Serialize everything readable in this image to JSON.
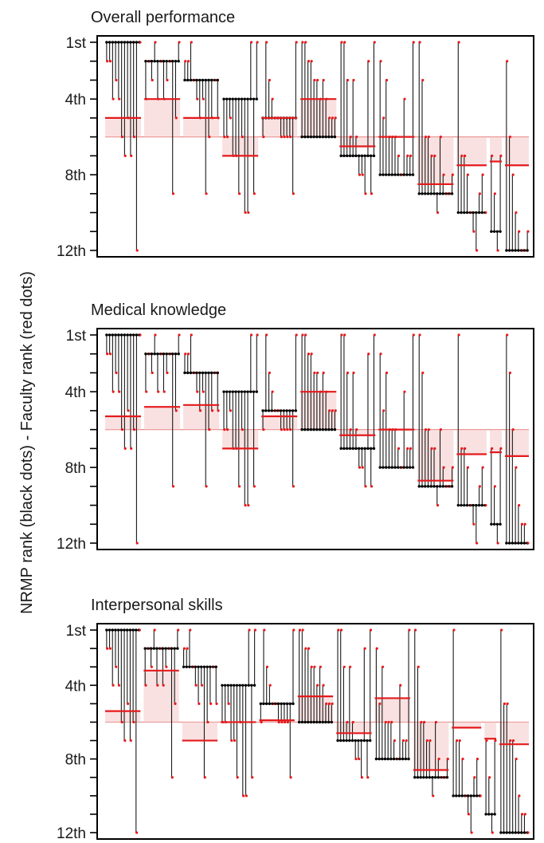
{
  "ylabel": "NRMP rank (black dots) - Faculty rank (red dots)",
  "colors": {
    "nrmp": "#000000",
    "faculty": "#e41a1c",
    "band": "#f6c8c8"
  },
  "ticks": [
    "1st",
    "4th",
    "8th",
    "12th"
  ],
  "chart_data": [
    {
      "type": "scatter",
      "title": "Overall performance",
      "ylim": [
        1,
        12
      ],
      "y_ticks": [
        "1st",
        "4th",
        "8th",
        "12th"
      ],
      "overall_mean": 6.0,
      "groups": [
        {
          "nrmp_rank": 1,
          "faculty": [
            2,
            2,
            4,
            3,
            4,
            6,
            7,
            5,
            7,
            6,
            12,
            1
          ],
          "mean": 5.0
        },
        {
          "nrmp_rank": 2,
          "faculty": [
            4,
            2,
            3,
            1,
            4,
            2,
            4,
            3,
            2,
            9,
            5,
            1
          ],
          "mean": 4.0
        },
        {
          "nrmp_rank": 3,
          "faculty": [
            2,
            2,
            1,
            3,
            4,
            5,
            4,
            9,
            6,
            5,
            3,
            5
          ],
          "mean": 5.0
        },
        {
          "nrmp_rank": 4,
          "faculty": [
            6,
            6,
            5,
            7,
            7,
            9,
            6,
            10,
            10,
            1,
            9,
            1
          ],
          "mean": 7.0
        },
        {
          "nrmp_rank": 5,
          "faculty": [
            6,
            1,
            3,
            4,
            5,
            5,
            6,
            6,
            6,
            6,
            9,
            1
          ],
          "mean": 5.0
        },
        {
          "nrmp_rank": 6,
          "faculty": [
            1,
            1,
            2,
            2,
            3,
            3,
            4,
            3,
            4,
            5,
            5,
            5
          ],
          "mean": 4.0
        },
        {
          "nrmp_rank": 7,
          "faculty": [
            1,
            1,
            3,
            6,
            3,
            6,
            8,
            8,
            9,
            2,
            9,
            1
          ],
          "mean": 6.5
        },
        {
          "nrmp_rank": 8,
          "faculty": [
            2,
            5,
            3,
            6,
            6,
            6,
            7,
            8,
            4,
            7,
            7,
            1
          ],
          "mean": 6.0
        },
        {
          "nrmp_rank": 9,
          "faculty": [
            1,
            3,
            6,
            6,
            7,
            7,
            10,
            6,
            8,
            9,
            9,
            8
          ],
          "mean": 8.5
        },
        {
          "nrmp_rank": 10,
          "faculty": [
            1,
            7,
            7,
            8,
            10,
            11,
            12,
            9,
            8,
            10
          ],
          "mean": 7.5
        },
        {
          "nrmp_rank": 11,
          "faculty": [
            7,
            9,
            12,
            7
          ],
          "mean": 7.3
        },
        {
          "nrmp_rank": 12,
          "faculty": [
            2,
            6,
            8,
            10,
            11,
            12,
            12,
            11
          ],
          "mean": 7.5
        }
      ]
    },
    {
      "type": "scatter",
      "title": "Medical knowledge",
      "ylim": [
        1,
        12
      ],
      "y_ticks": [
        "1st",
        "4th",
        "8th",
        "12th"
      ],
      "overall_mean": 6.0,
      "groups": [
        {
          "nrmp_rank": 1,
          "faculty": [
            2,
            2,
            4,
            3,
            4,
            6,
            7,
            5,
            7,
            6,
            12,
            1
          ],
          "mean": 5.3
        },
        {
          "nrmp_rank": 2,
          "faculty": [
            4,
            2,
            3,
            1,
            4,
            2,
            4,
            3,
            2,
            9,
            5,
            1
          ],
          "mean": 4.8
        },
        {
          "nrmp_rank": 3,
          "faculty": [
            2,
            2,
            1,
            3,
            4,
            5,
            4,
            9,
            6,
            5,
            3,
            5
          ],
          "mean": 4.7
        },
        {
          "nrmp_rank": 4,
          "faculty": [
            6,
            6,
            5,
            7,
            7,
            9,
            6,
            10,
            10,
            1,
            9,
            1
          ],
          "mean": 7.0
        },
        {
          "nrmp_rank": 5,
          "faculty": [
            6,
            1,
            3,
            4,
            5,
            5,
            6,
            6,
            6,
            6,
            9,
            1
          ],
          "mean": 5.3
        },
        {
          "nrmp_rank": 6,
          "faculty": [
            1,
            1,
            2,
            2,
            3,
            3,
            4,
            3,
            4,
            5,
            5,
            5
          ],
          "mean": 4.0
        },
        {
          "nrmp_rank": 7,
          "faculty": [
            1,
            1,
            3,
            6,
            3,
            6,
            8,
            8,
            9,
            2,
            9,
            1
          ],
          "mean": 6.3
        },
        {
          "nrmp_rank": 8,
          "faculty": [
            2,
            5,
            3,
            6,
            6,
            6,
            7,
            8,
            4,
            7,
            7,
            1
          ],
          "mean": 6.0
        },
        {
          "nrmp_rank": 9,
          "faculty": [
            1,
            3,
            6,
            6,
            7,
            7,
            10,
            6,
            8,
            9,
            9,
            8
          ],
          "mean": 8.7
        },
        {
          "nrmp_rank": 10,
          "faculty": [
            1,
            7,
            7,
            8,
            10,
            11,
            12,
            9,
            8,
            10
          ],
          "mean": 7.3
        },
        {
          "nrmp_rank": 11,
          "faculty": [
            7,
            9,
            12,
            7
          ],
          "mean": 7.2
        },
        {
          "nrmp_rank": 12,
          "faculty": [
            1,
            3,
            6,
            8,
            10,
            11,
            11,
            12
          ],
          "mean": 7.4
        }
      ]
    },
    {
      "type": "scatter",
      "title": "Interpersonal skills",
      "ylim": [
        1,
        12
      ],
      "y_ticks": [
        "1st",
        "4th",
        "8th",
        "12th"
      ],
      "overall_mean": 6.0,
      "groups": [
        {
          "nrmp_rank": 1,
          "faculty": [
            2,
            2,
            4,
            3,
            4,
            6,
            7,
            5,
            7,
            6,
            12,
            1
          ],
          "mean": 5.4
        },
        {
          "nrmp_rank": 2,
          "faculty": [
            4,
            2,
            3,
            1,
            4,
            2,
            4,
            3,
            2,
            9,
            5,
            1
          ],
          "mean": 3.2
        },
        {
          "nrmp_rank": 3,
          "faculty": [
            2,
            2,
            1,
            3,
            4,
            5,
            4,
            9,
            6,
            5,
            3,
            5
          ],
          "mean": 7.0
        },
        {
          "nrmp_rank": 4,
          "faculty": [
            6,
            6,
            5,
            7,
            7,
            9,
            6,
            10,
            10,
            1,
            9,
            1
          ],
          "mean": 6.0
        },
        {
          "nrmp_rank": 5,
          "faculty": [
            6,
            1,
            3,
            4,
            5,
            5,
            6,
            6,
            6,
            6,
            9,
            1
          ],
          "mean": 5.9
        },
        {
          "nrmp_rank": 6,
          "faculty": [
            1,
            1,
            2,
            2,
            3,
            3,
            4,
            3,
            4,
            5,
            5,
            5
          ],
          "mean": 4.6
        },
        {
          "nrmp_rank": 7,
          "faculty": [
            1,
            1,
            3,
            6,
            3,
            6,
            8,
            8,
            9,
            2,
            9,
            1
          ],
          "mean": 6.6
        },
        {
          "nrmp_rank": 8,
          "faculty": [
            2,
            5,
            3,
            6,
            6,
            6,
            7,
            8,
            4,
            7,
            7,
            1
          ],
          "mean": 4.7
        },
        {
          "nrmp_rank": 9,
          "faculty": [
            1,
            3,
            6,
            6,
            7,
            7,
            10,
            6,
            8,
            9,
            9,
            8
          ],
          "mean": 8.6
        },
        {
          "nrmp_rank": 10,
          "faculty": [
            1,
            7,
            7,
            8,
            10,
            11,
            12,
            9,
            8,
            10
          ],
          "mean": 6.3
        },
        {
          "nrmp_rank": 11,
          "faculty": [
            7,
            9,
            12,
            7
          ],
          "mean": 6.9
        },
        {
          "nrmp_rank": 12,
          "faculty": [
            1,
            5,
            5,
            7,
            7,
            8,
            10,
            11,
            11,
            12
          ],
          "mean": 7.2
        }
      ]
    }
  ]
}
